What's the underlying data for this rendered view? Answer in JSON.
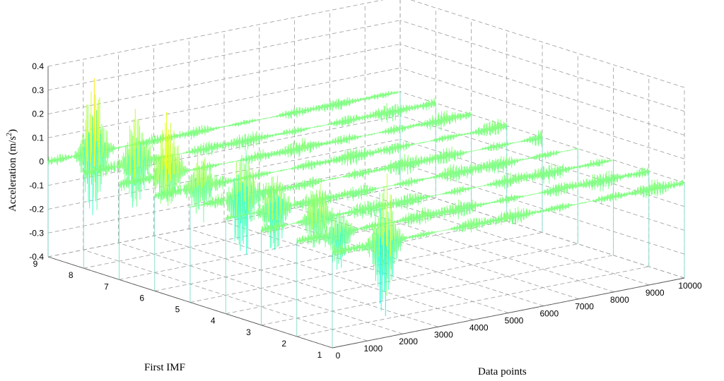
{
  "chart_data": {
    "type": "3d-waterfall",
    "xlabel": "Data points",
    "ylabel": "First IMF",
    "zlabel": "Acceleration (m/s",
    "zlabel_sup": "2",
    "zlabel_close": ")",
    "x_ticks": [
      "0",
      "1000",
      "2000",
      "3000",
      "4000",
      "5000",
      "6000",
      "7000",
      "8000",
      "9000",
      "10000"
    ],
    "y_ticks": [
      "1",
      "2",
      "3",
      "4",
      "5",
      "6",
      "7",
      "8",
      "9"
    ],
    "z_ticks": [
      "-0.4",
      "-0.3",
      "-0.2",
      "-0.1",
      "0",
      "0.1",
      "0.2",
      "0.3",
      "0.4"
    ],
    "xlim": [
      0,
      10000
    ],
    "ylim": [
      1,
      9
    ],
    "zlim": [
      -0.4,
      0.4
    ],
    "grid": true,
    "colormap": "jet",
    "series": [
      {
        "y": 1,
        "peak_x": 1500,
        "peak_max": 0.28,
        "peak_min": -0.36,
        "noise_amp": 0.025
      },
      {
        "y": 2,
        "peak_x": 1200,
        "peak_max": 0.12,
        "peak_min": -0.16,
        "noise_amp": 0.028
      },
      {
        "y": 3,
        "peak_x": 1600,
        "peak_max": 0.15,
        "peak_min": -0.14,
        "noise_amp": 0.028
      },
      {
        "y": 4,
        "peak_x": 1400,
        "peak_max": 0.17,
        "peak_min": -0.2,
        "noise_amp": 0.03
      },
      {
        "y": 5,
        "peak_x": 1500,
        "peak_max": 0.24,
        "peak_min": -0.3,
        "noise_amp": 0.03
      },
      {
        "y": 6,
        "peak_x": 1300,
        "peak_max": 0.16,
        "peak_min": -0.14,
        "noise_amp": 0.025
      },
      {
        "y": 7,
        "peak_x": 1400,
        "peak_max": 0.28,
        "peak_min": -0.18,
        "noise_amp": 0.025
      },
      {
        "y": 8,
        "peak_x": 1500,
        "peak_max": 0.26,
        "peak_min": -0.22,
        "noise_amp": 0.025
      },
      {
        "y": 9,
        "peak_x": 1300,
        "peak_max": 0.33,
        "peak_min": -0.3,
        "noise_amp": 0.02
      }
    ]
  }
}
